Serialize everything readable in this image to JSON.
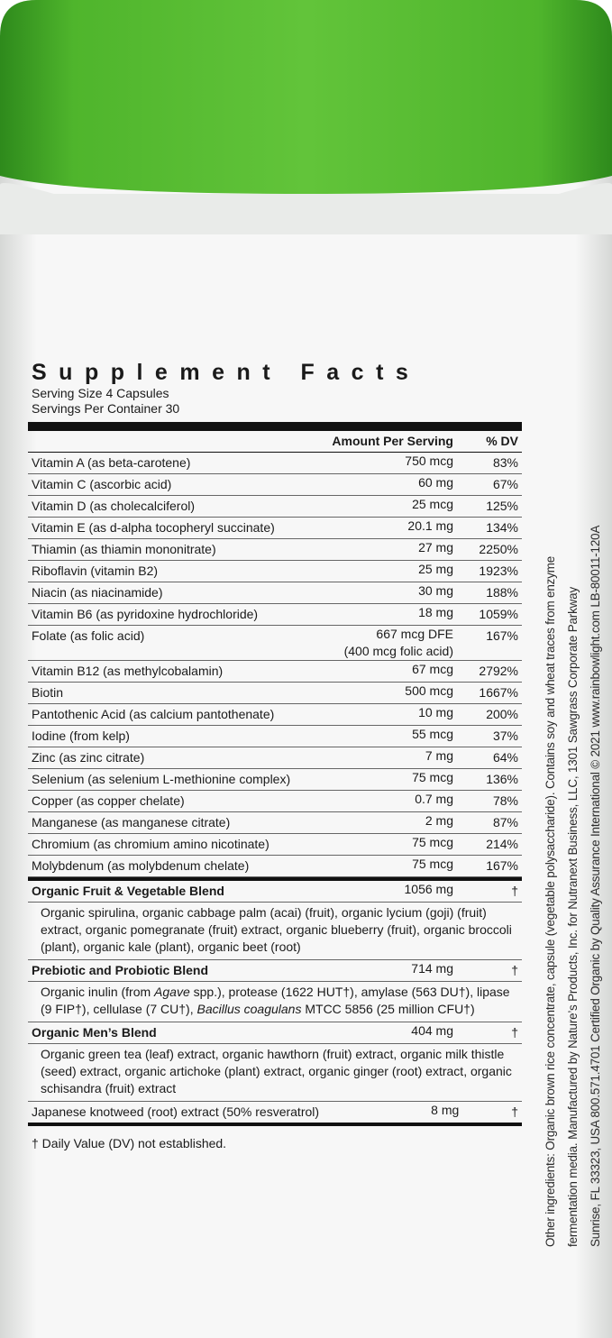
{
  "label": {
    "title": "Supplement Facts",
    "serving_size": "Serving Size 4 Capsules",
    "servings_per_container": "Servings Per Container 30",
    "columns": {
      "amount": "Amount Per Serving",
      "dv": "% DV"
    },
    "rows": [
      {
        "name": "Vitamin A (as beta-carotene)",
        "amount": "750 mcg",
        "dv": "83%"
      },
      {
        "name": "Vitamin C (ascorbic acid)",
        "amount": "60 mg",
        "dv": "67%"
      },
      {
        "name": "Vitamin D (as cholecalciferol)",
        "amount": "25 mcg",
        "dv": "125%"
      },
      {
        "name": "Vitamin E (as d-alpha tocopheryl succinate)",
        "amount": "20.1 mg",
        "dv": "134%"
      },
      {
        "name": "Thiamin (as thiamin mononitrate)",
        "amount": "27 mg",
        "dv": "2250%"
      },
      {
        "name": "Riboflavin (vitamin B2)",
        "amount": "25 mg",
        "dv": "1923%"
      },
      {
        "name": "Niacin (as niacinamide)",
        "amount": "30 mg",
        "dv": "188%"
      },
      {
        "name": "Vitamin B6 (as pyridoxine hydrochloride)",
        "amount": "18 mg",
        "dv": "1059%"
      },
      {
        "name": "Folate (as folic acid)",
        "amount": "667 mcg DFE",
        "amount_detail": "(400 mcg folic acid)",
        "dv": "167%"
      },
      {
        "name": "Vitamin B12 (as methylcobalamin)",
        "amount": "67 mcg",
        "dv": "2792%"
      },
      {
        "name": "Biotin",
        "amount": "500 mcg",
        "dv": "1667%"
      },
      {
        "name": "Pantothenic Acid (as calcium pantothenate)",
        "amount": "10 mg",
        "dv": "200%"
      },
      {
        "name": "Iodine (from kelp)",
        "amount": "55 mcg",
        "dv": "37%"
      },
      {
        "name": "Zinc (as zinc citrate)",
        "amount": "7 mg",
        "dv": "64%"
      },
      {
        "name": "Selenium (as selenium L-methionine complex)",
        "amount": "75 mcg",
        "dv": "136%"
      },
      {
        "name": "Copper (as copper chelate)",
        "amount": "0.7 mg",
        "dv": "78%"
      },
      {
        "name": "Manganese (as manganese citrate)",
        "amount": "2 mg",
        "dv": "87%"
      },
      {
        "name": "Chromium (as chromium amino nicotinate)",
        "amount": "75 mcg",
        "dv": "214%"
      },
      {
        "name": "Molybdenum (as molybdenum chelate)",
        "amount": "75 mcg",
        "dv": "167%"
      }
    ],
    "blends": [
      {
        "name": "Organic Fruit & Vegetable Blend",
        "amount": "1056 mg",
        "dv": "†",
        "description": [
          {
            "text": "Organic spirulina, organic cabbage palm (acai) (fruit), organic lycium (goji) (fruit) extract, organic pomegranate (fruit) extract, organic blueberry (fruit), organic broccoli (plant), organic kale (plant), organic beet (root)",
            "italic": false
          }
        ]
      },
      {
        "name": "Prebiotic and Probiotic Blend",
        "amount": "714 mg",
        "dv": "†",
        "description": [
          {
            "text": "Organic inulin (from ",
            "italic": false
          },
          {
            "text": "Agave",
            "italic": true
          },
          {
            "text": " spp.), protease (1622 HUT†), amylase (563 DU†), lipase (9 FIP†), cellulase (7 CU†), ",
            "italic": false
          },
          {
            "text": "Bacillus coagulans",
            "italic": true
          },
          {
            "text": " MTCC 5856 (25 million CFU†)",
            "italic": false
          }
        ]
      },
      {
        "name": "Organic Men’s Blend",
        "amount": "404 mg",
        "dv": "†",
        "description": [
          {
            "text": "Organic green tea (leaf) extract, organic hawthorn (fruit) extract, organic milk thistle (seed) extract, organic artichoke (plant) extract, organic ginger (root) extract, organic schisandra (fruit) extract",
            "italic": false
          }
        ]
      }
    ],
    "extra": {
      "name": "Japanese knotweed (root) extract (50% resveratrol)",
      "amount": "8 mg",
      "dv": "†"
    },
    "footnote": "† Daily Value (DV) not established."
  },
  "side_text": [
    "Other ingredients: Organic brown rice concentrate, capsule (vegetable polysaccharide). Contains soy and wheat traces from enzyme",
    "fermentation media. Manufactured by Nature’s Products, Inc. for Nutranext Business, LLC, 1301 Sawgrass Corporate Parkway",
    "Sunrise, FL 33323, USA  800.571.4701  Certified Organic by Quality Assurance International © 2021  www.rainbowlight.com  LB-80011-120A"
  ]
}
